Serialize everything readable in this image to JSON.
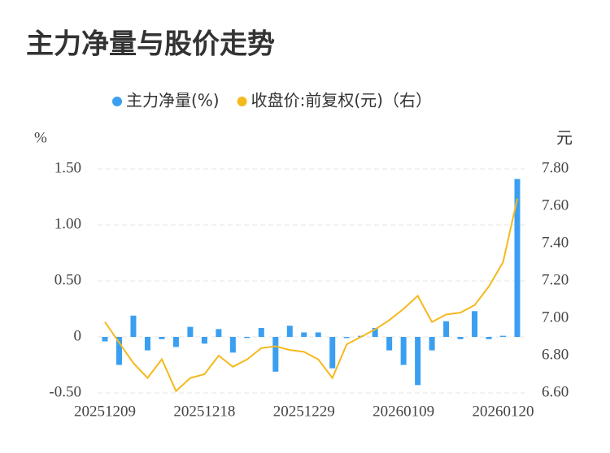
{
  "chart_data": {
    "type": "bar-line",
    "title": "主力净量与股价走势",
    "ylabel": "%",
    "y2label": "元",
    "categories": [
      "20251209",
      null,
      null,
      null,
      null,
      null,
      null,
      "20251218",
      null,
      null,
      null,
      null,
      null,
      null,
      "20251229",
      null,
      null,
      null,
      null,
      null,
      null,
      "20260109",
      null,
      null,
      null,
      null,
      null,
      null,
      "20260120",
      null
    ],
    "series": [
      {
        "name": "主力净量(%)",
        "type": "bar",
        "color": "#3a9ff0",
        "axis": "y",
        "values": [
          -0.04,
          -0.25,
          0.19,
          -0.12,
          -0.02,
          -0.09,
          0.09,
          -0.06,
          0.07,
          -0.14,
          -0.01,
          0.08,
          -0.31,
          0.1,
          0.04,
          0.04,
          -0.28,
          -0.01,
          0.01,
          0.08,
          -0.12,
          -0.25,
          -0.43,
          -0.12,
          0.14,
          -0.02,
          0.23,
          -0.02,
          0.01,
          1.41
        ]
      },
      {
        "name": "收盘价:前复权(元)（右）",
        "type": "line",
        "color": "#f5b91e",
        "axis": "y2",
        "values": [
          6.98,
          6.87,
          6.76,
          6.68,
          6.78,
          6.61,
          6.68,
          6.7,
          6.8,
          6.74,
          6.78,
          6.84,
          6.85,
          6.83,
          6.82,
          6.78,
          6.68,
          6.86,
          6.9,
          6.94,
          6.99,
          7.05,
          7.12,
          6.98,
          7.02,
          7.03,
          7.07,
          7.17,
          7.3,
          7.64
        ]
      }
    ],
    "ylim": [
      -0.5,
      1.5
    ],
    "yticks": [
      {
        "value": -0.5,
        "label": "-0.50"
      },
      0,
      {
        "value": 0.5,
        "label": "0.50"
      },
      {
        "value": 1.0,
        "label": "1.00"
      },
      {
        "value": 1.5,
        "label": "1.50"
      }
    ],
    "y2lim": [
      6.6,
      7.8
    ],
    "y2ticks": [
      {
        "value": 6.6,
        "label": "6.60"
      },
      {
        "value": 6.8,
        "label": "6.80"
      },
      {
        "value": 7.0,
        "label": "7.00"
      },
      {
        "value": 7.2,
        "label": "7.20"
      },
      {
        "value": 7.4,
        "label": "7.40"
      },
      {
        "value": 7.6,
        "label": "7.60"
      },
      {
        "value": 7.8,
        "label": "7.80"
      }
    ],
    "grid": true
  }
}
